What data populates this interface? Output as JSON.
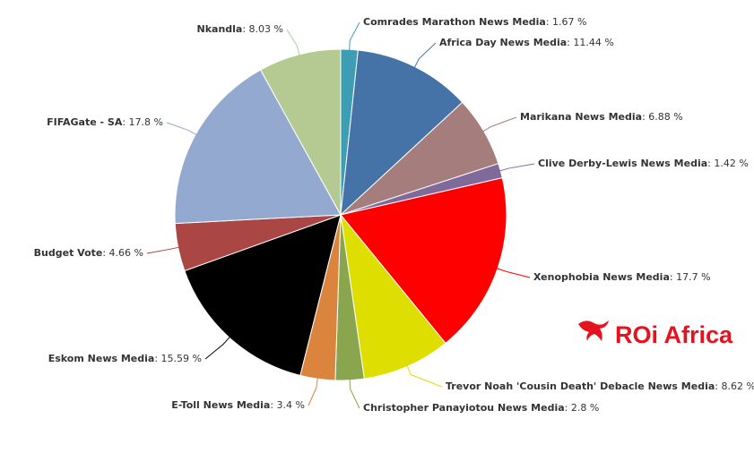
{
  "chart_data": {
    "type": "pie",
    "categories": [
      "Comrades Marathon News Media",
      "Africa Day News Media",
      "Marikana News Media",
      "Clive Derby-Lewis News Media",
      "Xenophobia News Media",
      "Trevor Noah 'Cousin Death' Debacle News Media",
      "Christopher Panayiotou News Media",
      "E-Toll News Media",
      "Eskom News Media",
      "Budget Vote",
      "FIFAGate - SA",
      "Nkandla"
    ],
    "values": [
      1.67,
      11.44,
      6.88,
      1.42,
      17.7,
      8.62,
      2.8,
      3.4,
      15.59,
      4.66,
      17.8,
      8.03
    ],
    "value_labels": [
      ": 1.67 %",
      ": 11.44 %",
      ": 6.88 %",
      ": 1.42 %",
      ": 17.7 %",
      ": 8.62 %",
      ": 2.8 %",
      ": 3.4 %",
      ": 15.59 %",
      ": 4.66 %",
      ": 17.8 %",
      ": 8.03 %"
    ],
    "colors": [
      "#3d9db3",
      "#4572a7",
      "#a47d7c",
      "#80699b",
      "#ff0000",
      "#dede00",
      "#89a54e",
      "#db843d",
      "#000000",
      "#aa4643",
      "#93a9cf",
      "#b5ca92"
    ]
  },
  "logo": "ROi Africa"
}
